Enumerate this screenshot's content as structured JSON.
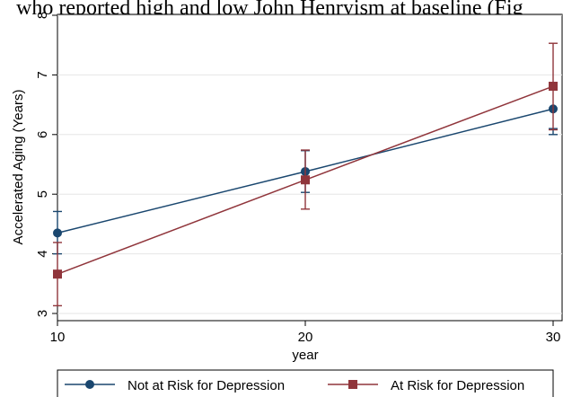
{
  "caption_fragment": "who reported high and low John Henryism at baseline (Fig",
  "chart_data": {
    "type": "line",
    "title": "",
    "xlabel": "year",
    "ylabel": "Accelerated Aging (Years)",
    "x": [
      10,
      20,
      30
    ],
    "xticks": [
      "10",
      "20",
      "30"
    ],
    "yticks": [
      "3",
      "4",
      "5",
      "6",
      "7",
      "8"
    ],
    "xlim": [
      10,
      30
    ],
    "ylim": [
      3,
      8
    ],
    "grid": true,
    "legend_position": "bottom",
    "series": [
      {
        "name": "Not at Risk for Depression",
        "color": "#1a476f",
        "marker": "circle",
        "values": [
          4.35,
          5.38,
          6.43
        ],
        "ci_low": [
          4.0,
          5.03,
          6.0
        ],
        "ci_high": [
          4.71,
          5.73,
          6.1
        ]
      },
      {
        "name": "At Risk for Depression",
        "color": "#90353b",
        "marker": "square",
        "values": [
          3.66,
          5.24,
          6.81
        ],
        "ci_low": [
          3.13,
          4.75,
          6.08
        ],
        "ci_high": [
          4.19,
          5.74,
          7.53
        ]
      }
    ]
  }
}
